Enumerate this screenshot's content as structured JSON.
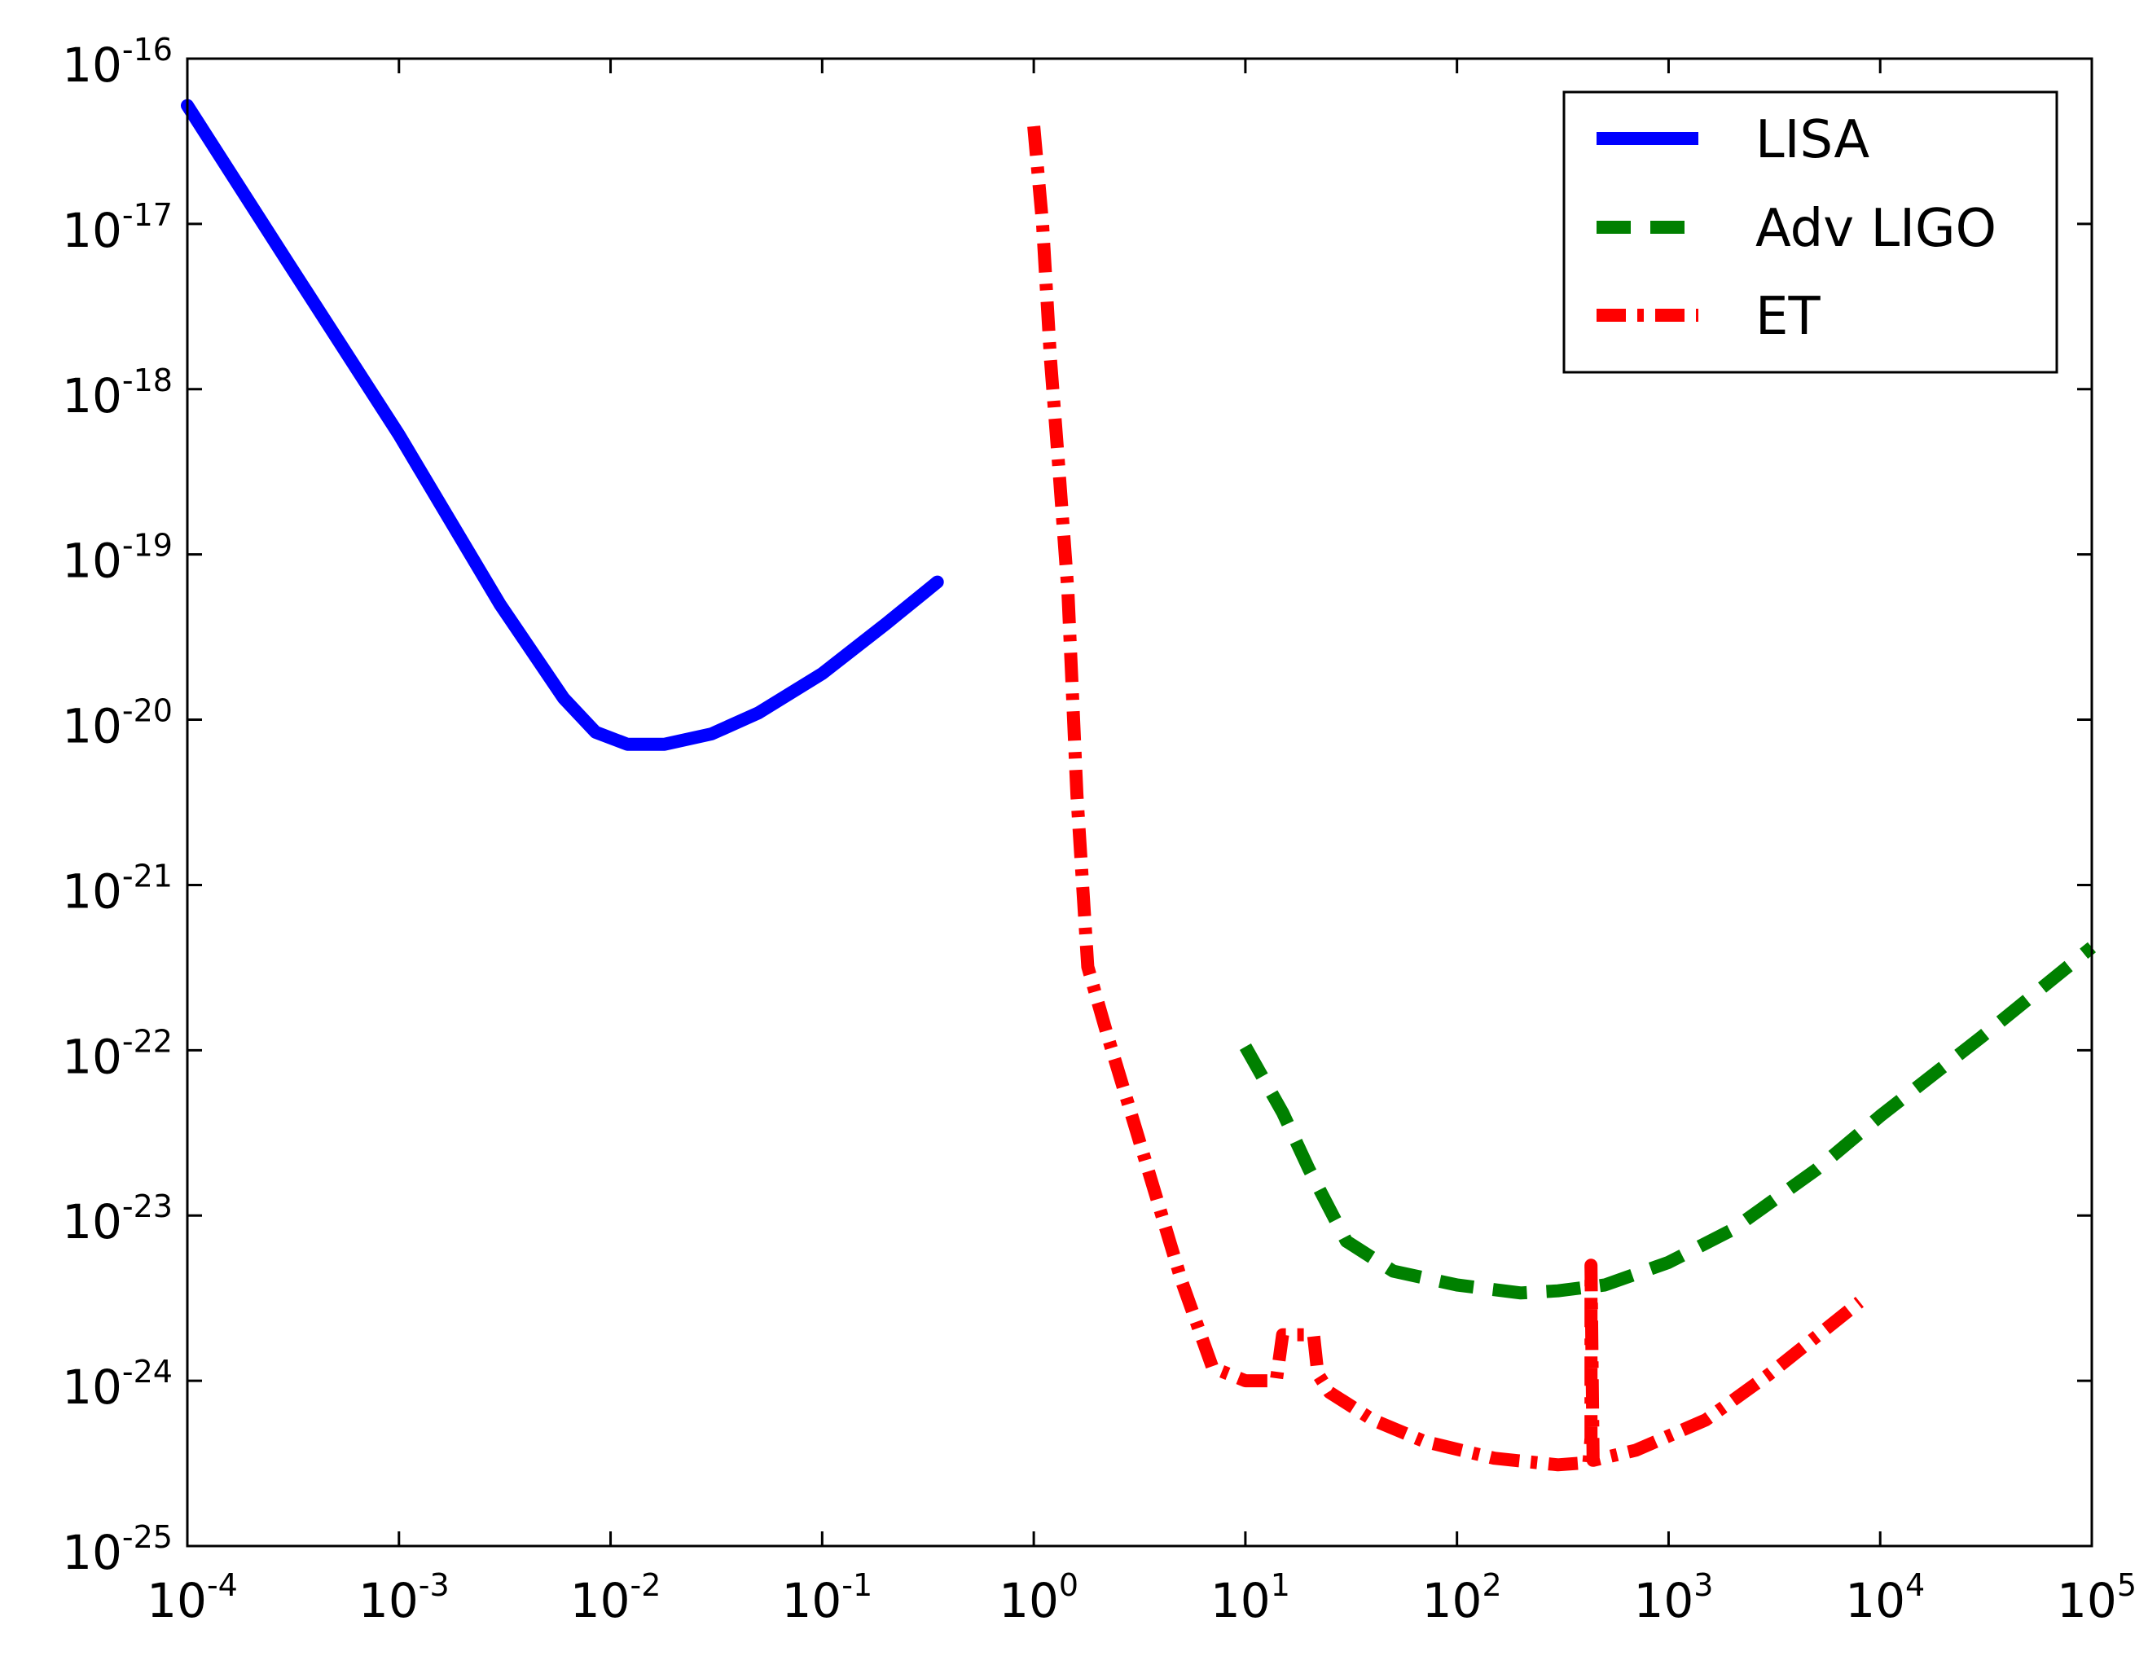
{
  "chart_data": {
    "type": "line",
    "title": "",
    "xlabel": "",
    "ylabel": "",
    "xscale": "log",
    "yscale": "log",
    "xlim": [
      0.0001,
      100000
    ],
    "ylim": [
      1e-25,
      1e-16
    ],
    "grid": false,
    "legend_position": "top-right",
    "x_ticks": [
      {
        "base": "10",
        "exp": "-4",
        "value": 0.0001
      },
      {
        "base": "10",
        "exp": "-3",
        "value": 0.001
      },
      {
        "base": "10",
        "exp": "-2",
        "value": 0.01
      },
      {
        "base": "10",
        "exp": "-1",
        "value": 0.1
      },
      {
        "base": "10",
        "exp": "0",
        "value": 1
      },
      {
        "base": "10",
        "exp": "1",
        "value": 10
      },
      {
        "base": "10",
        "exp": "2",
        "value": 100
      },
      {
        "base": "10",
        "exp": "3",
        "value": 1000
      },
      {
        "base": "10",
        "exp": "4",
        "value": 10000
      },
      {
        "base": "10",
        "exp": "5",
        "value": 100000
      }
    ],
    "y_ticks": [
      {
        "base": "10",
        "exp": "-25",
        "value": 1e-25
      },
      {
        "base": "10",
        "exp": "-24",
        "value": 1e-24
      },
      {
        "base": "10",
        "exp": "-23",
        "value": 1e-23
      },
      {
        "base": "10",
        "exp": "-22",
        "value": 1e-22
      },
      {
        "base": "10",
        "exp": "-21",
        "value": 1e-21
      },
      {
        "base": "10",
        "exp": "-20",
        "value": 1e-20
      },
      {
        "base": "10",
        "exp": "-19",
        "value": 1e-19
      },
      {
        "base": "10",
        "exp": "-18",
        "value": 1e-18
      },
      {
        "base": "10",
        "exp": "-17",
        "value": 1e-17
      },
      {
        "base": "10",
        "exp": "-16",
        "value": 1e-16
      }
    ],
    "series": [
      {
        "name": "LISA",
        "color": "#0000ff",
        "style": "solid",
        "points": [
          [
            0.0001,
            5.2e-17
          ],
          [
            0.0003,
            5.8e-18
          ],
          [
            0.001,
            5.3e-19
          ],
          [
            0.003,
            5e-20
          ],
          [
            0.006,
            1.35e-20
          ],
          [
            0.0085,
            8.4e-21
          ],
          [
            0.012,
            7.1e-21
          ],
          [
            0.018,
            7.1e-21
          ],
          [
            0.03,
            8.2e-21
          ],
          [
            0.05,
            1.1e-20
          ],
          [
            0.1,
            1.9e-20
          ],
          [
            0.2,
            3.8e-20
          ],
          [
            0.35,
            6.8e-20
          ]
        ]
      },
      {
        "name": "Adv LIGO",
        "color": "#008000",
        "style": "dashed",
        "points": [
          [
            10,
            1.05e-22
          ],
          [
            15,
            4.2e-23
          ],
          [
            20,
            1.9e-23
          ],
          [
            30,
            7e-24
          ],
          [
            50,
            4.6e-24
          ],
          [
            100,
            3.8e-24
          ],
          [
            200,
            3.4e-24
          ],
          [
            300,
            3.5e-24
          ],
          [
            500,
            3.8e-24
          ],
          [
            1000,
            5.2e-24
          ],
          [
            2000,
            8.2e-24
          ],
          [
            5000,
            1.9e-23
          ],
          [
            10000,
            4e-23
          ],
          [
            30000,
            1.2e-22
          ],
          [
            100000,
            4.2e-22
          ]
        ]
      },
      {
        "name": "ET",
        "color": "#ff0000",
        "style": "dashdot",
        "points": [
          [
            1.0,
            3.9e-17
          ],
          [
            1.1,
            1e-17
          ],
          [
            1.2,
            1.5e-18
          ],
          [
            1.3,
            4e-19
          ],
          [
            1.45,
            6e-20
          ],
          [
            1.6,
            3.5e-21
          ],
          [
            1.8,
            3.2e-22
          ],
          [
            2.2,
            1.3e-22
          ],
          [
            3.0,
            3.5e-23
          ],
          [
            5.0,
            4e-24
          ],
          [
            7.0,
            1.2e-24
          ],
          [
            10,
            1e-24
          ],
          [
            14,
            1e-24
          ],
          [
            15,
            1.9e-24
          ],
          [
            18,
            1.9e-24
          ],
          [
            21,
            1.9e-24
          ],
          [
            22,
            1.1e-24
          ],
          [
            25,
            8.5e-25
          ],
          [
            40,
            5.8e-25
          ],
          [
            70,
            4.3e-25
          ],
          [
            150,
            3.4e-25
          ],
          [
            300,
            3.1e-25
          ],
          [
            420,
            3.2e-25
          ],
          [
            430,
            4.5e-25
          ],
          [
            430,
            5e-24
          ],
          [
            440,
            3.3e-25
          ],
          [
            700,
            3.8e-25
          ],
          [
            1500,
            5.8e-25
          ],
          [
            3000,
            1.1e-24
          ],
          [
            8000,
            3e-24
          ]
        ]
      }
    ]
  }
}
